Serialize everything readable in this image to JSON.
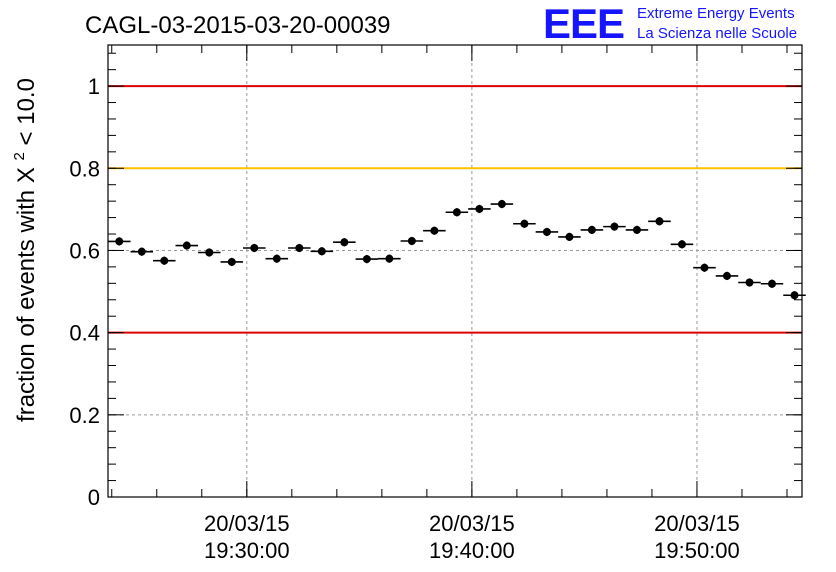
{
  "chart_data": {
    "type": "scatter",
    "title": "CAGL-03-2015-03-20-00039",
    "ylabel": "fraction of events with",
    "ylabel_symbol": "X",
    "ylabel_sup": "2",
    "ylabel_tail": "< 10.0",
    "xlabel": "",
    "ylim": [
      0,
      1.1
    ],
    "y_ticks": [
      "0",
      "0.2",
      "0.4",
      "0.6",
      "0.8",
      "1"
    ],
    "x_ticks": [
      {
        "date": "20/03/15",
        "time": "19:30:00"
      },
      {
        "date": "20/03/15",
        "time": "19:40:00"
      },
      {
        "date": "20/03/15",
        "time": "19:50:00"
      }
    ],
    "x_range": [
      "19:23:50",
      "19:54:40"
    ],
    "grid": true,
    "reference_lines": [
      {
        "y": 1.0,
        "color": "#dd0000"
      },
      {
        "y": 0.8,
        "color": "#ffc000"
      },
      {
        "y": 0.4,
        "color": "#dd0000"
      }
    ],
    "bin_width_minutes": 1,
    "points": [
      {
        "x": "19:24:20",
        "y": 0.622
      },
      {
        "x": "19:25:20",
        "y": 0.597
      },
      {
        "x": "19:26:20",
        "y": 0.575
      },
      {
        "x": "19:27:20",
        "y": 0.612
      },
      {
        "x": "19:28:20",
        "y": 0.595
      },
      {
        "x": "19:29:20",
        "y": 0.572
      },
      {
        "x": "19:30:20",
        "y": 0.606
      },
      {
        "x": "19:31:20",
        "y": 0.58
      },
      {
        "x": "19:32:20",
        "y": 0.606
      },
      {
        "x": "19:33:20",
        "y": 0.598
      },
      {
        "x": "19:34:20",
        "y": 0.62
      },
      {
        "x": "19:35:20",
        "y": 0.579
      },
      {
        "x": "19:36:20",
        "y": 0.58
      },
      {
        "x": "19:37:20",
        "y": 0.623
      },
      {
        "x": "19:38:20",
        "y": 0.648
      },
      {
        "x": "19:39:20",
        "y": 0.693
      },
      {
        "x": "19:40:20",
        "y": 0.701
      },
      {
        "x": "19:41:20",
        "y": 0.713
      },
      {
        "x": "19:42:20",
        "y": 0.665
      },
      {
        "x": "19:43:20",
        "y": 0.645
      },
      {
        "x": "19:44:20",
        "y": 0.633
      },
      {
        "x": "19:45:20",
        "y": 0.65
      },
      {
        "x": "19:46:20",
        "y": 0.658
      },
      {
        "x": "19:47:20",
        "y": 0.65
      },
      {
        "x": "19:48:20",
        "y": 0.671
      },
      {
        "x": "19:49:20",
        "y": 0.615
      },
      {
        "x": "19:50:20",
        "y": 0.558
      },
      {
        "x": "19:51:20",
        "y": 0.538
      },
      {
        "x": "19:52:20",
        "y": 0.522
      },
      {
        "x": "19:53:20",
        "y": 0.519
      },
      {
        "x": "19:54:20",
        "y": 0.491
      }
    ],
    "y_error": 0.01
  },
  "logo": {
    "mark": "EEE",
    "line1": "Extreme Energy Events",
    "line2": "La Scienza nelle Scuole",
    "color": "#1515ff"
  },
  "colors": {
    "grid": "#9a9a9a",
    "axis": "#000000",
    "marker": "#000000"
  }
}
